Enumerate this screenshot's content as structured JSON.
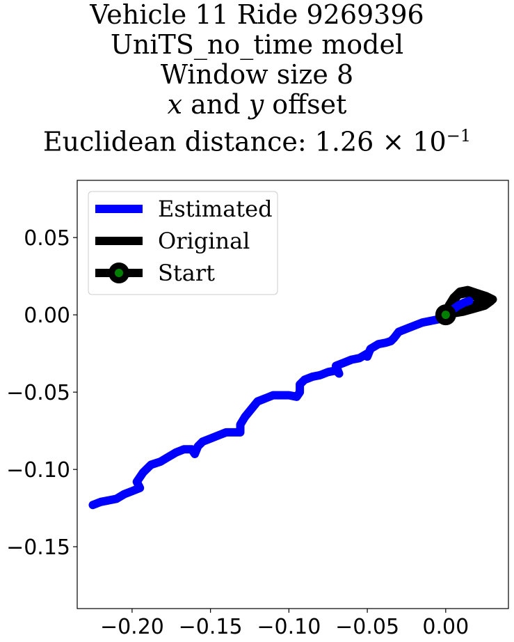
{
  "title": {
    "line1": "Vehicle 11 Ride 9269396",
    "line2": "UniTS_no_time model",
    "line3": "Window size 8",
    "line4_var1": "x",
    "line4_and": " and ",
    "line4_var2": "y",
    "line4_rest": " offset",
    "line5_prefix": "Euclidean distance: ",
    "line5_mantissa": "1.26",
    "line5_times": " × 10",
    "line5_exponent": "−1"
  },
  "chart_data": {
    "type": "line",
    "xlim": [
      -0.235,
      0.04
    ],
    "ylim": [
      -0.19,
      0.087
    ],
    "grid": false,
    "legend_position": "top-left",
    "x_ticks": [
      -0.2,
      -0.15,
      -0.1,
      -0.05,
      0.0
    ],
    "x_tick_labels": [
      "−0.20",
      "−0.15",
      "−0.10",
      "−0.05",
      "0.00"
    ],
    "y_ticks": [
      0.05,
      0.0,
      -0.05,
      -0.1,
      -0.15
    ],
    "y_tick_labels": [
      "0.05",
      "0.00",
      "−0.05",
      "−0.10",
      "−0.15"
    ],
    "legend": [
      {
        "label": "Estimated",
        "color": "#0000ff",
        "marker": "none"
      },
      {
        "label": "Original",
        "color": "#000000",
        "marker": "none"
      },
      {
        "label": "Start",
        "color": "#000000",
        "marker": "circle",
        "marker_face": "#008000"
      }
    ],
    "series": [
      {
        "name": "Estimated",
        "color": "#0000ff",
        "points": [
          [
            -0.225,
            -0.123
          ],
          [
            -0.22,
            -0.121
          ],
          [
            -0.215,
            -0.12
          ],
          [
            -0.21,
            -0.119
          ],
          [
            -0.205,
            -0.116
          ],
          [
            -0.2,
            -0.114
          ],
          [
            -0.195,
            -0.112
          ],
          [
            -0.197,
            -0.108
          ],
          [
            -0.193,
            -0.102
          ],
          [
            -0.188,
            -0.097
          ],
          [
            -0.182,
            -0.095
          ],
          [
            -0.177,
            -0.092
          ],
          [
            -0.172,
            -0.089
          ],
          [
            -0.167,
            -0.087
          ],
          [
            -0.162,
            -0.087
          ],
          [
            -0.16,
            -0.09
          ],
          [
            -0.158,
            -0.085
          ],
          [
            -0.155,
            -0.082
          ],
          [
            -0.15,
            -0.08
          ],
          [
            -0.145,
            -0.078
          ],
          [
            -0.14,
            -0.076
          ],
          [
            -0.135,
            -0.076
          ],
          [
            -0.131,
            -0.076
          ],
          [
            -0.131,
            -0.071
          ],
          [
            -0.128,
            -0.066
          ],
          [
            -0.124,
            -0.061
          ],
          [
            -0.12,
            -0.056
          ],
          [
            -0.115,
            -0.054
          ],
          [
            -0.11,
            -0.052
          ],
          [
            -0.105,
            -0.052
          ],
          [
            -0.1,
            -0.052
          ],
          [
            -0.095,
            -0.053
          ],
          [
            -0.093,
            -0.05
          ],
          [
            -0.093,
            -0.045
          ],
          [
            -0.09,
            -0.042
          ],
          [
            -0.085,
            -0.04
          ],
          [
            -0.08,
            -0.039
          ],
          [
            -0.075,
            -0.037
          ],
          [
            -0.07,
            -0.036
          ],
          [
            -0.068,
            -0.038
          ],
          [
            -0.07,
            -0.033
          ],
          [
            -0.065,
            -0.031
          ],
          [
            -0.06,
            -0.029
          ],
          [
            -0.055,
            -0.028
          ],
          [
            -0.05,
            -0.025
          ],
          [
            -0.05,
            -0.027
          ],
          [
            -0.048,
            -0.022
          ],
          [
            -0.043,
            -0.019
          ],
          [
            -0.038,
            -0.018
          ],
          [
            -0.035,
            -0.017
          ],
          [
            -0.033,
            -0.015
          ],
          [
            -0.03,
            -0.011
          ],
          [
            -0.025,
            -0.009
          ],
          [
            -0.02,
            -0.007
          ],
          [
            -0.015,
            -0.005
          ],
          [
            -0.01,
            -0.004
          ],
          [
            -0.005,
            -0.003
          ],
          [
            0.0,
            -0.001
          ],
          [
            0.004,
            0.003
          ],
          [
            0.008,
            0.006
          ],
          [
            0.012,
            0.008
          ],
          [
            0.015,
            0.009
          ]
        ]
      },
      {
        "name": "Original",
        "color": "#000000",
        "points": [
          [
            0.0,
            0.0
          ],
          [
            0.002,
            0.006
          ],
          [
            0.005,
            0.011
          ],
          [
            0.009,
            0.015
          ],
          [
            0.014,
            0.016
          ],
          [
            0.02,
            0.014
          ],
          [
            0.026,
            0.012
          ],
          [
            0.03,
            0.01
          ],
          [
            0.027,
            0.008
          ],
          [
            0.02,
            0.007
          ],
          [
            0.014,
            0.005
          ],
          [
            0.01,
            0.003
          ],
          [
            0.007,
            0.005
          ],
          [
            0.005,
            0.009
          ],
          [
            0.008,
            0.013
          ],
          [
            0.013,
            0.014
          ],
          [
            0.018,
            0.012
          ],
          [
            0.024,
            0.011
          ],
          [
            0.029,
            0.009
          ],
          [
            0.025,
            0.006
          ],
          [
            0.018,
            0.004
          ],
          [
            0.011,
            0.002
          ],
          [
            0.005,
            0.001
          ],
          [
            0.0,
            0.0
          ]
        ]
      }
    ],
    "start_point": [
      0.0,
      0.0
    ]
  }
}
